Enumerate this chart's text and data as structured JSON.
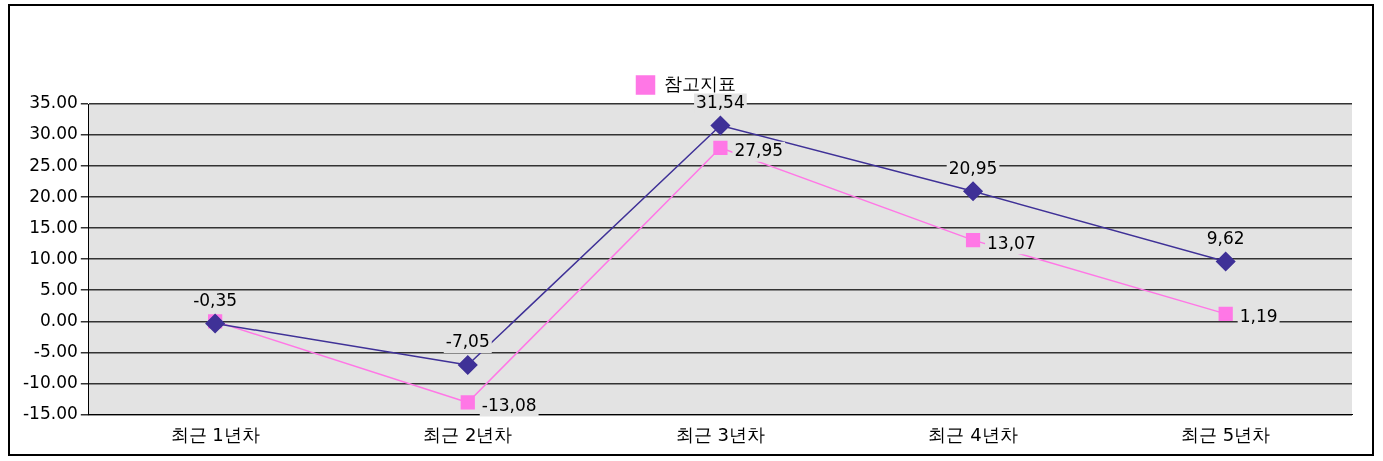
{
  "chart_data": {
    "type": "line",
    "categories": [
      "최근 1년차",
      "최근 2년차",
      "최근 3년차",
      "최근 4년차",
      "최근 5년차"
    ],
    "series": [
      {
        "color": "#3f3197",
        "marker": "diamond",
        "values": [
          -0.35,
          -7.05,
          31.54,
          20.95,
          9.62
        ],
        "value_labels": [
          "-0,35",
          "-7,05",
          "31,54",
          "20,95",
          "9,62"
        ]
      },
      {
        "name": "참고지표",
        "color": "#ff77e6",
        "marker": "square",
        "values": [
          0,
          -13.08,
          27.95,
          13.07,
          1.19
        ],
        "value_labels": [
          null,
          "-13,08",
          "27,95",
          "13,07",
          "1,19"
        ]
      }
    ],
    "ylim": [
      -15,
      35
    ],
    "yticks": [
      {
        "value": -15,
        "label": "-15.00"
      },
      {
        "value": -10,
        "label": "-10.00"
      },
      {
        "value": -5,
        "label": "-5.00"
      },
      {
        "value": 0,
        "label": "0.00"
      },
      {
        "value": 5,
        "label": "5.00"
      },
      {
        "value": 10,
        "label": "10.00"
      },
      {
        "value": 15,
        "label": "15.00"
      },
      {
        "value": 20,
        "label": "20.00"
      },
      {
        "value": 25,
        "label": "25.00"
      },
      {
        "value": 30,
        "label": "30.00"
      },
      {
        "value": 35,
        "label": "35.00"
      }
    ],
    "grid": "y",
    "legend": "top",
    "line_style": "solid"
  }
}
